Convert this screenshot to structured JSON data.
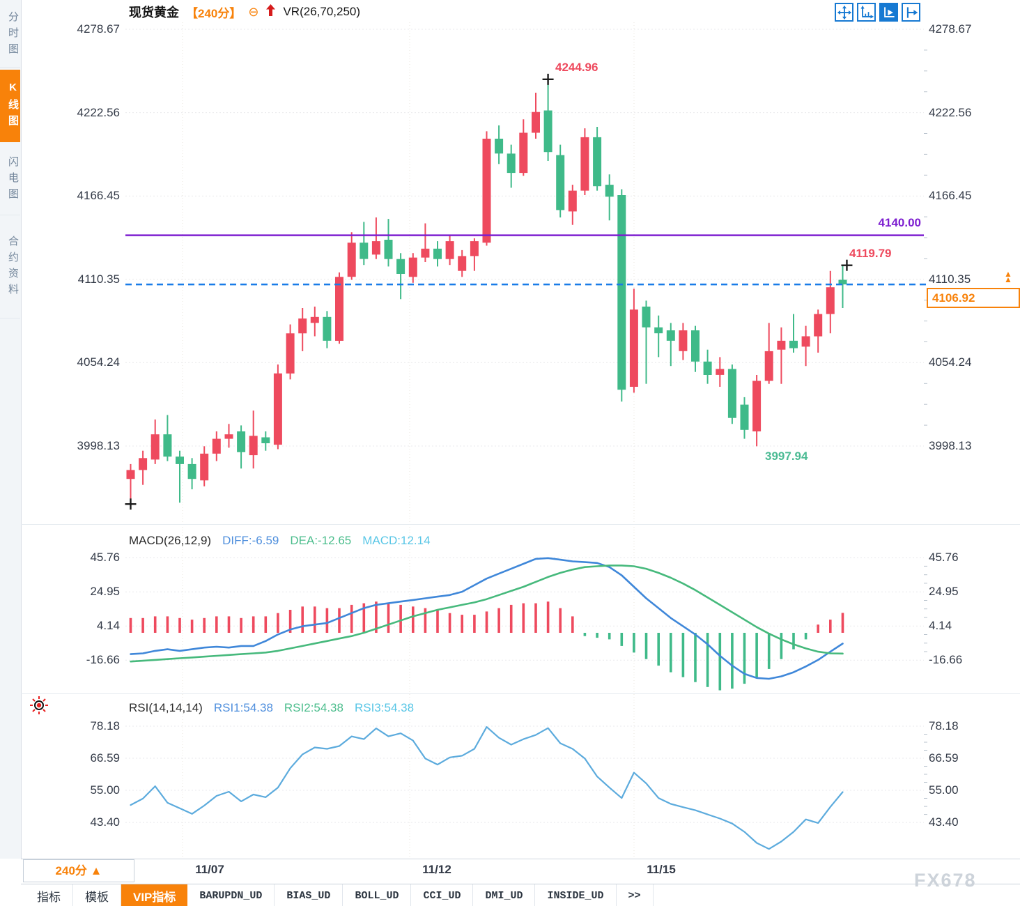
{
  "sidebar": {
    "items": [
      {
        "label": "分时图",
        "active": false
      },
      {
        "label": "K线图",
        "active": true
      },
      {
        "label": "闪电图",
        "active": false
      },
      {
        "label": "合约资料",
        "active": false
      }
    ]
  },
  "header": {
    "symbol": "现货黄金",
    "period": "【240分】",
    "collapse_glyph": "⊖",
    "indicator": "VR(26,70,250)"
  },
  "toolbar": {
    "icons": [
      "pan",
      "zoom-x-axis",
      "auto-scale",
      "go-to-latest"
    ],
    "active_index": 2
  },
  "price_pane": {
    "high_annotation": "4244.96",
    "low_annotation": "3997.94",
    "latest_high_annotation": "4119.79",
    "resistance_label": "4140.00",
    "current_price_label": "4106.92",
    "latest_marker": "▲▲"
  },
  "macd_pane": {
    "title": "MACD(26,12,9)",
    "diff_label": "DIFF:-6.59",
    "dea_label": "DEA:-12.65",
    "macd_label": "MACD:12.14"
  },
  "rsi_pane": {
    "title": "RSI(14,14,14)",
    "rsi1_label": "RSI1:54.38",
    "rsi2_label": "RSI2:54.38",
    "rsi3_label": "RSI3:54.38"
  },
  "footer": {
    "period": "240分",
    "period_arrow": "▲",
    "dates": [
      "11/07",
      "11/12",
      "11/15"
    ],
    "tabs": [
      {
        "label": "指标",
        "active": false
      },
      {
        "label": "模板",
        "active": false
      },
      {
        "label": "VIP指标",
        "active": true
      },
      {
        "label": "BARUPDN_UD",
        "active": false
      },
      {
        "label": "BIAS_UD",
        "active": false
      },
      {
        "label": "BOLL_UD",
        "active": false
      },
      {
        "label": "CCI_UD",
        "active": false
      },
      {
        "label": "DMI_UD",
        "active": false
      },
      {
        "label": "INSIDE_UD",
        "active": false
      },
      {
        "label": ">>",
        "active": false
      }
    ],
    "watermark": "FX678"
  },
  "colors": {
    "up": "#ee4a5e",
    "down": "#3fba89",
    "macd_diff_line": "#3f87d9",
    "macd_dea_line": "#46b97c",
    "rsi_line": "#5cabdd",
    "accent_orange": "#f8820a",
    "resistance_purple": "#7d1fd0",
    "current_dashed_blue": "#1a7ce8",
    "toolbar_blue": "#1679d2"
  },
  "chart_data": [
    {
      "type": "candlestick",
      "title": "现货黄金 240分",
      "x_date_labels": [
        "11/07",
        "11/12",
        "11/15"
      ],
      "y_ticks": [
        4278.67,
        4222.56,
        4166.45,
        4110.35,
        4054.24,
        3998.13
      ],
      "ylim": [
        3998.13,
        4278.67
      ],
      "high": 4244.96,
      "low": 3997.94,
      "last_high": 4119.79,
      "last_close": 4106.92,
      "resistance_line": 4140.0,
      "candles_ohlc": [
        [
          3976,
          3986,
          3960,
          3982
        ],
        [
          3982,
          3995,
          3972,
          3990
        ],
        [
          3989,
          4016,
          3986,
          4006
        ],
        [
          4006,
          4019,
          3988,
          3991
        ],
        [
          3991,
          3995,
          3960,
          3986
        ],
        [
          3986,
          3990,
          3969,
          3976
        ],
        [
          3975,
          3998,
          3971,
          3993
        ],
        [
          3993,
          4008,
          3988,
          4003
        ],
        [
          4003,
          4013,
          3997,
          4006
        ],
        [
          4008,
          4012,
          3983,
          3994
        ],
        [
          3992,
          4022,
          3983,
          4005
        ],
        [
          4004,
          4008,
          3995,
          4000
        ],
        [
          3999,
          4053,
          3996,
          4047
        ],
        [
          4047,
          4080,
          4043,
          4074
        ],
        [
          4074,
          4091,
          4062,
          4084
        ],
        [
          4081,
          4092,
          4072,
          4085
        ],
        [
          4085,
          4089,
          4064,
          4069
        ],
        [
          4069,
          4115,
          4067,
          4112
        ],
        [
          4112,
          4142,
          4110,
          4135
        ],
        [
          4135,
          4149,
          4120,
          4124
        ],
        [
          4127,
          4152,
          4124,
          4136
        ],
        [
          4137,
          4151,
          4119,
          4124
        ],
        [
          4124,
          4128,
          4097,
          4114
        ],
        [
          4112,
          4128,
          4108,
          4125
        ],
        [
          4125,
          4148,
          4122,
          4131
        ],
        [
          4131,
          4136,
          4119,
          4124
        ],
        [
          4124,
          4140,
          4120,
          4136
        ],
        [
          4116,
          4130,
          4112,
          4126
        ],
        [
          4126,
          4138,
          4116,
          4136
        ],
        [
          4135,
          4210,
          4133,
          4205
        ],
        [
          4205,
          4214,
          4188,
          4195
        ],
        [
          4195,
          4201,
          4172,
          4182
        ],
        [
          4182,
          4218,
          4180,
          4209
        ],
        [
          4209,
          4236,
          4205,
          4223
        ],
        [
          4224,
          4244.96,
          4190,
          4196
        ],
        [
          4194,
          4201,
          4152,
          4157
        ],
        [
          4156,
          4174,
          4147,
          4170
        ],
        [
          4170,
          4212,
          4167,
          4206
        ],
        [
          4206,
          4213,
          4170,
          4173
        ],
        [
          4174,
          4181,
          4150,
          4166
        ],
        [
          4167,
          4171,
          4028,
          4036
        ],
        [
          4038,
          4104,
          4034,
          4090
        ],
        [
          4092,
          4096,
          4040,
          4078
        ],
        [
          4078,
          4086,
          4058,
          4074
        ],
        [
          4076,
          4081,
          4052,
          4069
        ],
        [
          4062,
          4081,
          4056,
          4076
        ],
        [
          4076,
          4079,
          4048,
          4055
        ],
        [
          4055,
          4063,
          4040,
          4046
        ],
        [
          4046,
          4058,
          4038,
          4050
        ],
        [
          4050,
          4053,
          4013,
          4017
        ],
        [
          4026,
          4031,
          4003,
          4009
        ],
        [
          4008,
          4046,
          3997.94,
          4042
        ],
        [
          4042,
          4081,
          4040,
          4062
        ],
        [
          4063,
          4078,
          4040,
          4069
        ],
        [
          4069,
          4087,
          4061,
          4064
        ],
        [
          4065,
          4079,
          4052,
          4072
        ],
        [
          4072,
          4090,
          4061,
          4087
        ],
        [
          4087,
          4116,
          4074,
          4105
        ],
        [
          4110,
          4119.79,
          4091,
          4106.92
        ]
      ]
    },
    {
      "type": "macd",
      "params": [
        26,
        12,
        9
      ],
      "diff": -6.59,
      "dea": -12.65,
      "macd": 12.14,
      "y_ticks": [
        45.76,
        24.95,
        4.14,
        -16.66
      ],
      "series": [
        {
          "name": "DIFF",
          "values": [
            -13,
            -12.5,
            -11,
            -10,
            -11,
            -10,
            -9,
            -8.5,
            -9,
            -8,
            -8,
            -5,
            -1,
            2,
            4,
            5,
            6,
            9,
            12,
            15,
            17,
            18,
            19,
            20,
            21,
            22,
            23,
            25,
            29,
            33,
            36,
            39,
            42,
            45,
            45.5,
            44.5,
            43.5,
            43,
            42.5,
            40,
            35,
            28,
            21,
            15,
            9,
            4,
            -1,
            -7,
            -14,
            -20,
            -25,
            -27.5,
            -28,
            -26.5,
            -24,
            -20.5,
            -16.5,
            -11.5,
            -6.59
          ]
        },
        {
          "name": "DEA",
          "values": [
            -17.5,
            -17,
            -16.5,
            -16,
            -15.5,
            -15,
            -14.5,
            -14,
            -13.5,
            -13,
            -12.5,
            -12,
            -11,
            -9.5,
            -8,
            -6.5,
            -5,
            -3.5,
            -2,
            0,
            2.5,
            5,
            7.5,
            10,
            12,
            14,
            15.5,
            17,
            18.5,
            20.5,
            23,
            25.5,
            28,
            31,
            34,
            36.5,
            38.5,
            40,
            40.5,
            41,
            41,
            40.5,
            39,
            36.5,
            33.5,
            30,
            26,
            21.5,
            17,
            12.5,
            8,
            3.5,
            -0.5,
            -4,
            -7,
            -9.5,
            -11.5,
            -12.5,
            -12.65
          ]
        },
        {
          "name": "HIST",
          "values": [
            9,
            9,
            10,
            10,
            9,
            8,
            9,
            10,
            10,
            9,
            10,
            10,
            12,
            14,
            16,
            16,
            15,
            15,
            17,
            18,
            19,
            18,
            17,
            16,
            15,
            14,
            12,
            11,
            11,
            13,
            15,
            17,
            18,
            18,
            19,
            15,
            10,
            -2,
            -3,
            -4,
            -8,
            -12,
            -16,
            -20,
            -24,
            -27,
            -30,
            -33,
            -35,
            -34,
            -31,
            -27,
            -22,
            -16,
            -10,
            -4,
            5,
            8,
            12.14
          ]
        }
      ]
    },
    {
      "type": "line",
      "name": "RSI",
      "params": [
        14,
        14,
        14
      ],
      "rsi1": 54.38,
      "rsi2": 54.38,
      "rsi3": 54.38,
      "y_ticks": [
        78.18,
        66.59,
        55.0,
        43.4
      ],
      "values": [
        49.7,
        52,
        56.5,
        50.5,
        48.5,
        46.5,
        49.5,
        53,
        54.5,
        51,
        53.5,
        52.5,
        56,
        63,
        68,
        70.5,
        70,
        71,
        74.5,
        73.5,
        77.4,
        74.5,
        75.6,
        73,
        66.5,
        64.3,
        66.9,
        67.5,
        70,
        77.9,
        74,
        71.5,
        73.5,
        75,
        77.5,
        72,
        70,
        66.5,
        60,
        56,
        52.2,
        61.4,
        57.5,
        52.2,
        50.1,
        48.9,
        47.8,
        46.3,
        44.8,
        43,
        40,
        36,
        33.8,
        36.5,
        40,
        44.5,
        43.2,
        49,
        54.38
      ]
    }
  ]
}
